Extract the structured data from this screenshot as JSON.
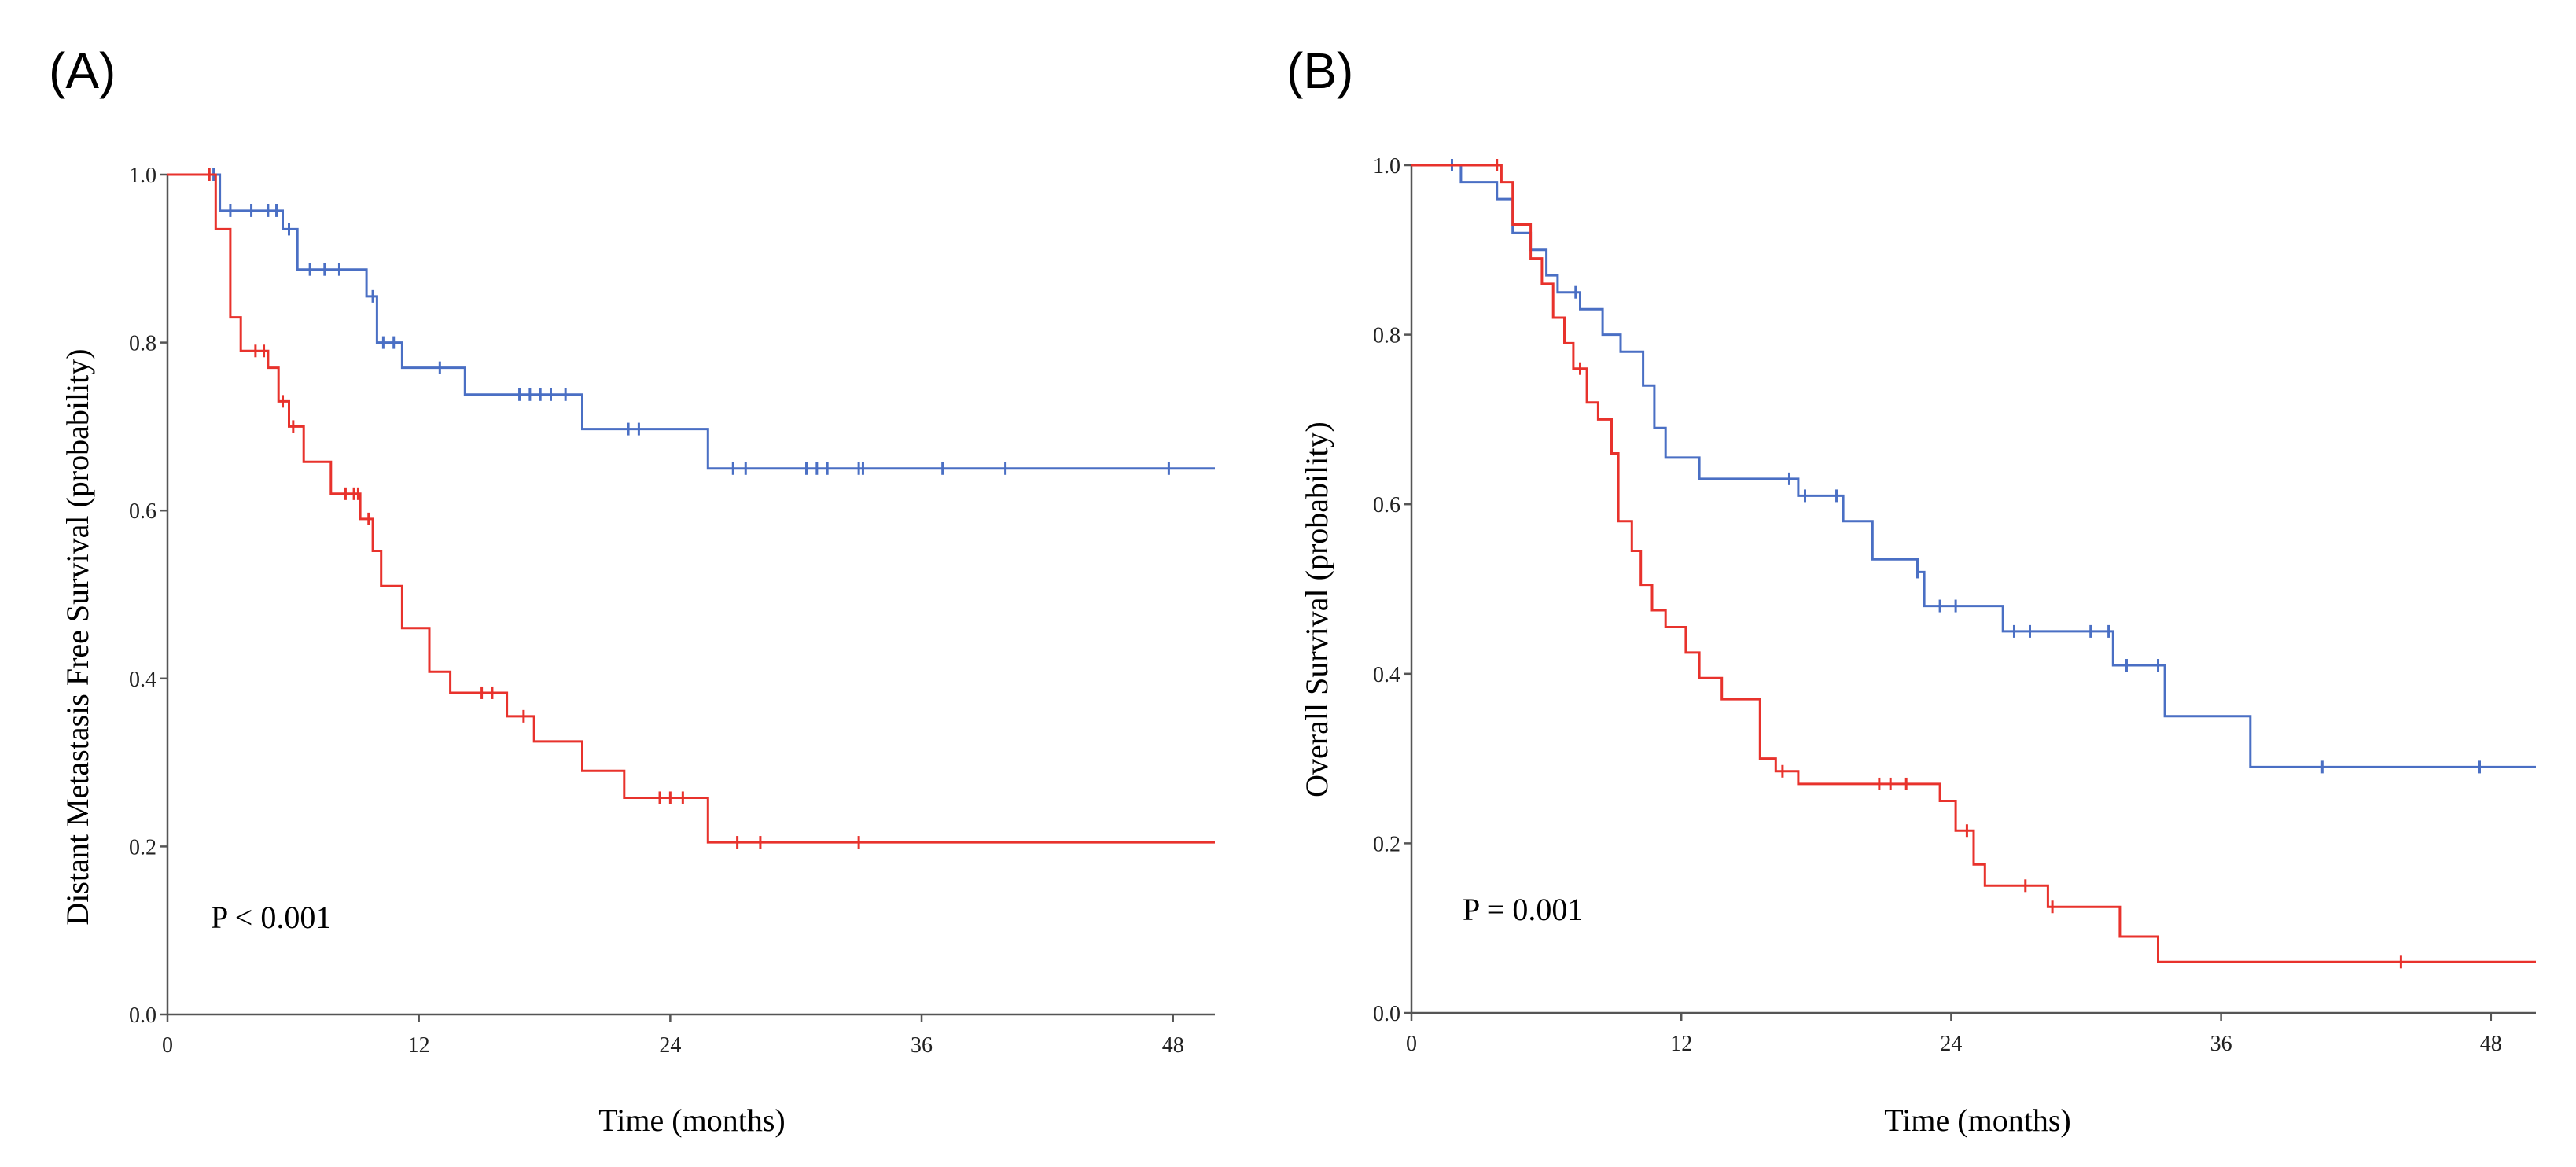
{
  "chart_data": [
    {
      "type": "line",
      "subtype": "kaplan-meier",
      "panel_label": "(A)",
      "title": "",
      "xlabel": "Time (months)",
      "ylabel": "Distant Metastasis Free Survival (probability)",
      "xlim": [
        0,
        50
      ],
      "ylim": [
        0,
        1.0
      ],
      "xticks": [
        0,
        12,
        24,
        36,
        48
      ],
      "xtick_labels": [
        "0",
        "12",
        "24",
        "36",
        "48"
      ],
      "yticks": [
        0,
        0.2,
        0.4,
        0.6,
        0.8,
        1.0
      ],
      "ytick_labels": [
        "0.0",
        "0.2",
        "0.4",
        "0.6",
        "0.8",
        "1.0"
      ],
      "annotation": "P < 0.001",
      "grid": false,
      "series": [
        {
          "name": "blue",
          "color": "#4a6fc4",
          "steps": [
            [
              0,
              1.0
            ],
            [
              2.5,
              0.957
            ],
            [
              5.5,
              0.935
            ],
            [
              6.2,
              0.887
            ],
            [
              9.5,
              0.855
            ],
            [
              10,
              0.8
            ],
            [
              11.2,
              0.77
            ],
            [
              14.2,
              0.738
            ],
            [
              19.8,
              0.697
            ],
            [
              25.8,
              0.65
            ],
            [
              50,
              0.65
            ]
          ],
          "censor_times": [
            2.2,
            3,
            4,
            4.8,
            5.2,
            5.8,
            6.8,
            7.5,
            8.2,
            9.8,
            10.3,
            10.8,
            13,
            16.8,
            17.3,
            17.8,
            18.3,
            19,
            22,
            22.5,
            27,
            27.6,
            30.5,
            31,
            31.5,
            33,
            33.2,
            37,
            40,
            47.8
          ]
        },
        {
          "name": "red",
          "color": "#e8322c",
          "steps": [
            [
              0,
              1.0
            ],
            [
              2.3,
              0.935
            ],
            [
              3,
              0.83
            ],
            [
              3.5,
              0.79
            ],
            [
              4.8,
              0.77
            ],
            [
              5.3,
              0.73
            ],
            [
              5.8,
              0.7
            ],
            [
              6.5,
              0.658
            ],
            [
              7.8,
              0.62
            ],
            [
              9.2,
              0.59
            ],
            [
              9.8,
              0.552
            ],
            [
              10.2,
              0.51
            ],
            [
              11.2,
              0.46
            ],
            [
              12.5,
              0.408
            ],
            [
              13.5,
              0.383
            ],
            [
              16.2,
              0.355
            ],
            [
              17.5,
              0.325
            ],
            [
              19.8,
              0.29
            ],
            [
              21.8,
              0.258
            ],
            [
              25.8,
              0.205
            ],
            [
              50,
              0.205
            ]
          ],
          "censor_times": [
            2,
            4.2,
            4.6,
            5.5,
            6,
            8.5,
            8.9,
            9.1,
            9.6,
            15,
            15.5,
            17,
            23.5,
            24,
            24.6,
            27.2,
            28.3,
            33
          ]
        }
      ]
    },
    {
      "type": "line",
      "subtype": "kaplan-meier",
      "panel_label": "(B)",
      "title": "",
      "xlabel": "Time (months)",
      "ylabel": "Overall Survival (probability)",
      "xlim": [
        0,
        50
      ],
      "ylim": [
        0,
        1.0
      ],
      "xticks": [
        0,
        12,
        24,
        36,
        48
      ],
      "xtick_labels": [
        "0",
        "12",
        "24",
        "36",
        "48"
      ],
      "yticks": [
        0,
        0.2,
        0.4,
        0.6,
        0.8,
        1.0
      ],
      "ytick_labels": [
        "0.0",
        "0.2",
        "0.4",
        "0.6",
        "0.8",
        "1.0"
      ],
      "annotation": "P = 0.001",
      "grid": false,
      "series": [
        {
          "name": "blue",
          "color": "#4a6fc4",
          "steps": [
            [
              0,
              1.0
            ],
            [
              2.2,
              0.98
            ],
            [
              3.8,
              0.96
            ],
            [
              4.5,
              0.92
            ],
            [
              5.3,
              0.9
            ],
            [
              6,
              0.87
            ],
            [
              6.5,
              0.85
            ],
            [
              7.5,
              0.83
            ],
            [
              8.5,
              0.8
            ],
            [
              9.3,
              0.78
            ],
            [
              10.3,
              0.74
            ],
            [
              10.8,
              0.69
            ],
            [
              11.3,
              0.655
            ],
            [
              12.8,
              0.63
            ],
            [
              17.2,
              0.61
            ],
            [
              19.2,
              0.58
            ],
            [
              20.5,
              0.535
            ],
            [
              22.5,
              0.52
            ],
            [
              22.8,
              0.48
            ],
            [
              26.3,
              0.45
            ],
            [
              30.5,
              0.45
            ],
            [
              31.2,
              0.41
            ],
            [
              33.5,
              0.35
            ],
            [
              37.3,
              0.29
            ],
            [
              50,
              0.29
            ]
          ],
          "censor_times": [
            1.8,
            7.3,
            16.8,
            17.5,
            18.9,
            22.5,
            23.5,
            24.2,
            26.8,
            27.5,
            30.2,
            31,
            31.8,
            33.2,
            40.5,
            47.5
          ]
        },
        {
          "name": "red",
          "color": "#e8322c",
          "steps": [
            [
              0,
              1.0
            ],
            [
              4,
              0.98
            ],
            [
              4.5,
              0.93
            ],
            [
              5.3,
              0.89
            ],
            [
              5.8,
              0.86
            ],
            [
              6.3,
              0.82
            ],
            [
              6.8,
              0.79
            ],
            [
              7.2,
              0.76
            ],
            [
              7.8,
              0.72
            ],
            [
              8.3,
              0.7
            ],
            [
              8.9,
              0.66
            ],
            [
              9.2,
              0.58
            ],
            [
              9.8,
              0.545
            ],
            [
              10.2,
              0.505
            ],
            [
              10.7,
              0.475
            ],
            [
              11.3,
              0.455
            ],
            [
              12.2,
              0.425
            ],
            [
              12.8,
              0.395
            ],
            [
              13.8,
              0.37
            ],
            [
              15.5,
              0.3
            ],
            [
              16.2,
              0.285
            ],
            [
              17.2,
              0.27
            ],
            [
              23.5,
              0.25
            ],
            [
              24.2,
              0.215
            ],
            [
              25,
              0.175
            ],
            [
              25.5,
              0.15
            ],
            [
              28.3,
              0.125
            ],
            [
              31.5,
              0.09
            ],
            [
              33.2,
              0.06
            ],
            [
              50,
              0.06
            ]
          ],
          "censor_times": [
            3.8,
            7.5,
            16.5,
            20.8,
            21.3,
            22,
            24.7,
            27.3,
            28.5,
            44
          ]
        }
      ]
    }
  ]
}
